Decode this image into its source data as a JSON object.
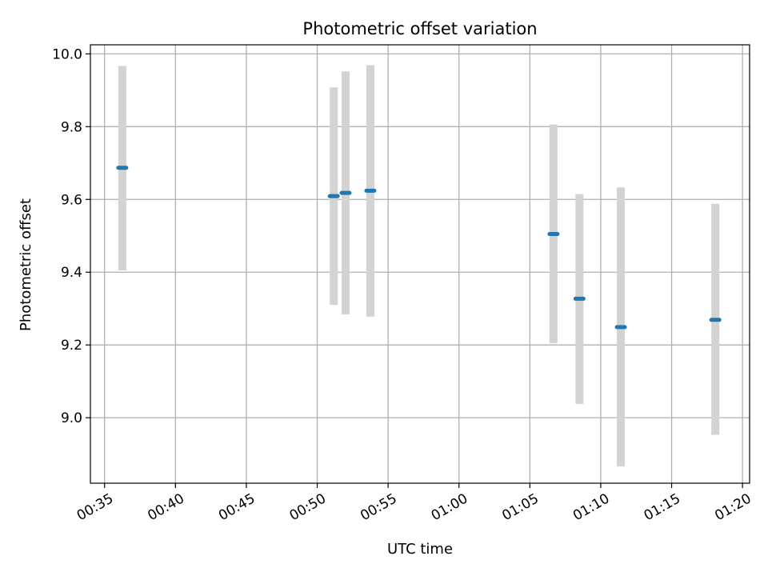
{
  "chart_data": {
    "type": "scatter",
    "title": "Photometric offset variation",
    "xlabel": "UTC time",
    "ylabel": "Photometric offset",
    "xlim": [
      "00:34:00",
      "01:20:30"
    ],
    "ylim": [
      8.82,
      10.025
    ],
    "xticks": [
      "00:35",
      "00:40",
      "00:45",
      "00:50",
      "00:55",
      "01:00",
      "01:05",
      "01:10",
      "01:15",
      "01:20"
    ],
    "yticks": [
      9.0,
      9.2,
      9.4,
      9.6,
      9.8,
      10.0
    ],
    "grid": true,
    "series": [
      {
        "points": [
          {
            "t": "00:36:15",
            "y": 9.687,
            "low": 9.405,
            "high": 9.967
          },
          {
            "t": "00:51:10",
            "y": 9.609,
            "low": 9.31,
            "high": 9.908
          },
          {
            "t": "00:52:00",
            "y": 9.618,
            "low": 9.284,
            "high": 9.952
          },
          {
            "t": "00:53:45",
            "y": 9.624,
            "low": 9.278,
            "high": 9.969
          },
          {
            "t": "01:06:40",
            "y": 9.505,
            "low": 9.205,
            "high": 9.806
          },
          {
            "t": "01:08:30",
            "y": 9.327,
            "low": 9.038,
            "high": 9.615
          },
          {
            "t": "01:11:25",
            "y": 9.249,
            "low": 8.866,
            "high": 9.633
          },
          {
            "t": "01:18:05",
            "y": 9.269,
            "low": 8.953,
            "high": 9.588
          }
        ]
      }
    ]
  },
  "colors": {
    "marker": "#1f77b4",
    "errorbar": "#d3d3d3",
    "grid": "#b0b0b0",
    "axis": "#000000"
  }
}
